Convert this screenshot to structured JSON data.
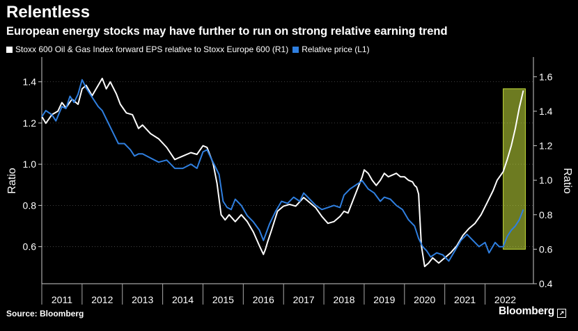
{
  "header": {
    "title": "Relentless",
    "subtitle": "European energy stocks may have further to run on strong relative earning trend"
  },
  "legend": [
    {
      "label": "Stoxx 600 Oil & Gas Index forward EPS relative to Stoxx Europe 600 (R1)",
      "color": "#ffffff"
    },
    {
      "label": "Relative price (L1)",
      "color": "#2f7fe0"
    }
  ],
  "footer": {
    "source": "Source: Bloomberg",
    "brand": "Bloomberg"
  },
  "chart_data": {
    "type": "line",
    "x_ticks": [
      "2011",
      "2012",
      "2013",
      "2014",
      "2015",
      "2016",
      "2017",
      "2018",
      "2019",
      "2020",
      "2021",
      "2022"
    ],
    "xlim": [
      2010.5,
      2022.7
    ],
    "left_axis": {
      "label": "Ratio",
      "ylim": [
        0.42,
        1.5
      ],
      "ticks": [
        "0.6",
        "0.8",
        "1.0",
        "1.2",
        "1.4"
      ]
    },
    "right_axis": {
      "label": "Ratio",
      "ylim": [
        0.4,
        1.69
      ],
      "ticks": [
        "0.4",
        "0.6",
        "0.8",
        "1.0",
        "1.2",
        "1.4",
        "1.6"
      ]
    },
    "highlight": {
      "x_range": [
        2021.95,
        2022.5
      ],
      "y_range_right": [
        0.6,
        1.53
      ],
      "color": "#c6e03c"
    },
    "series": [
      {
        "name": "Stoxx 600 Oil & Gas Index forward EPS relative to Stoxx Europe 600 (R1)",
        "axis": "right",
        "color": "#ffffff",
        "x": [
          2010.5,
          2010.6,
          2010.75,
          2010.9,
          2011.0,
          2011.1,
          2011.25,
          2011.4,
          2011.5,
          2011.6,
          2011.75,
          2011.9,
          2012.0,
          2012.1,
          2012.2,
          2012.35,
          2012.45,
          2012.6,
          2012.75,
          2012.9,
          2013.0,
          2013.2,
          2013.4,
          2013.6,
          2013.8,
          2014.0,
          2014.2,
          2014.35,
          2014.5,
          2014.6,
          2014.75,
          2014.85,
          2014.95,
          2015.05,
          2015.15,
          2015.3,
          2015.45,
          2015.6,
          2015.75,
          2015.9,
          2016.0,
          2016.05,
          2016.1,
          2016.2,
          2016.35,
          2016.5,
          2016.65,
          2016.8,
          2017.0,
          2017.15,
          2017.3,
          2017.45,
          2017.6,
          2017.75,
          2017.9,
          2018.0,
          2018.1,
          2018.2,
          2018.35,
          2018.45,
          2018.5,
          2018.6,
          2018.7,
          2018.8,
          2018.9,
          2019.0,
          2019.1,
          2019.2,
          2019.3,
          2019.4,
          2019.5,
          2019.6,
          2019.7,
          2019.75,
          2019.8,
          2019.85,
          2019.92,
          2020.0,
          2020.1,
          2020.2,
          2020.35,
          2020.5,
          2020.65,
          2020.8,
          2020.95,
          2021.1,
          2021.25,
          2021.4,
          2021.55,
          2021.7,
          2021.8,
          2021.95,
          2022.05,
          2022.15,
          2022.25,
          2022.35,
          2022.45
        ],
        "values": [
          1.37,
          1.33,
          1.38,
          1.4,
          1.45,
          1.42,
          1.47,
          1.44,
          1.53,
          1.55,
          1.49,
          1.55,
          1.59,
          1.53,
          1.57,
          1.5,
          1.44,
          1.39,
          1.38,
          1.3,
          1.32,
          1.27,
          1.24,
          1.19,
          1.12,
          1.14,
          1.16,
          1.15,
          1.2,
          1.19,
          1.1,
          0.98,
          0.8,
          0.77,
          0.8,
          0.76,
          0.8,
          0.76,
          0.7,
          0.62,
          0.57,
          0.6,
          0.64,
          0.71,
          0.82,
          0.85,
          0.86,
          0.85,
          0.9,
          0.87,
          0.84,
          0.79,
          0.75,
          0.76,
          0.79,
          0.82,
          0.81,
          0.87,
          0.96,
          1.02,
          1.06,
          1.04,
          1.0,
          0.97,
          1.0,
          1.04,
          1.02,
          1.03,
          1.04,
          1.02,
          1.02,
          1.0,
          0.99,
          0.97,
          0.96,
          0.92,
          0.62,
          0.5,
          0.52,
          0.55,
          0.52,
          0.55,
          0.58,
          0.62,
          0.68,
          0.72,
          0.75,
          0.8,
          0.87,
          0.94,
          1.0,
          1.05,
          1.12,
          1.2,
          1.3,
          1.42,
          1.52
        ]
      },
      {
        "name": "Relative price (L1)",
        "axis": "left",
        "color": "#2f7fe0",
        "x": [
          2010.5,
          2010.6,
          2010.75,
          2010.85,
          2011.0,
          2011.1,
          2011.2,
          2011.3,
          2011.4,
          2011.5,
          2011.6,
          2011.7,
          2011.8,
          2011.9,
          2012.0,
          2012.1,
          2012.2,
          2012.3,
          2012.4,
          2012.55,
          2012.7,
          2012.8,
          2012.9,
          2013.0,
          2013.2,
          2013.4,
          2013.6,
          2013.8,
          2014.0,
          2014.2,
          2014.35,
          2014.5,
          2014.6,
          2014.7,
          2014.8,
          2014.9,
          2015.0,
          2015.1,
          2015.2,
          2015.3,
          2015.45,
          2015.6,
          2015.75,
          2015.9,
          2016.0,
          2016.15,
          2016.3,
          2016.45,
          2016.6,
          2016.75,
          2016.9,
          2017.0,
          2017.15,
          2017.3,
          2017.45,
          2017.6,
          2017.75,
          2017.9,
          2018.0,
          2018.15,
          2018.3,
          2018.45,
          2018.6,
          2018.75,
          2018.9,
          2019.0,
          2019.15,
          2019.3,
          2019.45,
          2019.6,
          2019.75,
          2019.85,
          2019.95,
          2020.05,
          2020.15,
          2020.3,
          2020.45,
          2020.6,
          2020.75,
          2020.9,
          2021.05,
          2021.2,
          2021.35,
          2021.5,
          2021.6,
          2021.75,
          2021.85,
          2021.95,
          2022.05,
          2022.15,
          2022.25,
          2022.35,
          2022.45
        ],
        "values": [
          1.23,
          1.26,
          1.24,
          1.21,
          1.28,
          1.27,
          1.33,
          1.3,
          1.34,
          1.41,
          1.37,
          1.34,
          1.31,
          1.28,
          1.26,
          1.22,
          1.18,
          1.14,
          1.1,
          1.1,
          1.07,
          1.04,
          1.05,
          1.05,
          1.03,
          1.01,
          1.02,
          0.98,
          0.98,
          1.0,
          0.98,
          1.06,
          1.07,
          1.03,
          0.99,
          0.95,
          0.82,
          0.79,
          0.78,
          0.83,
          0.8,
          0.75,
          0.72,
          0.68,
          0.63,
          0.71,
          0.77,
          0.82,
          0.81,
          0.84,
          0.82,
          0.86,
          0.83,
          0.8,
          0.78,
          0.79,
          0.8,
          0.79,
          0.85,
          0.88,
          0.9,
          0.92,
          0.88,
          0.86,
          0.82,
          0.84,
          0.83,
          0.8,
          0.78,
          0.73,
          0.7,
          0.64,
          0.6,
          0.58,
          0.55,
          0.57,
          0.56,
          0.53,
          0.58,
          0.63,
          0.66,
          0.63,
          0.6,
          0.62,
          0.57,
          0.62,
          0.6,
          0.6,
          0.65,
          0.68,
          0.7,
          0.73,
          0.78
        ]
      }
    ]
  }
}
